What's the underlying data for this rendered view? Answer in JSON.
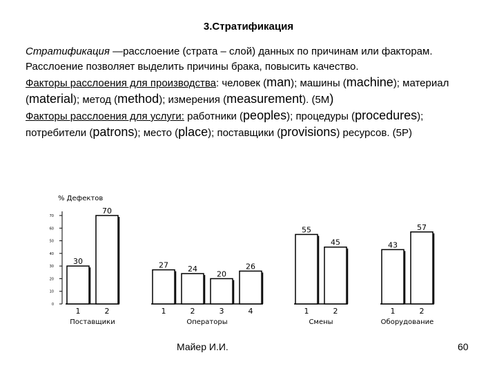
{
  "slide": {
    "title": "3.Стратификация",
    "definition": {
      "term": "Стратификация",
      "text_1": " —расслоение  (",
      "strata": "страта – слой",
      "text_2": ") данных по причинам или факторам. Расслоение позволяет выделить причины брака, повысить качество."
    },
    "production": {
      "label": "Факторы расслоения для производства",
      "t1": ": человек (",
      "man": "man",
      "t2": "); машины (",
      "machine": "machine",
      "t3": "); материал (",
      "material": "material",
      "t4": "); метод (",
      "method": "method",
      "t5": "); измерения (",
      "measurement": "measurement",
      "t6": "). (5М",
      "t7": ")"
    },
    "services": {
      "label": "Факторы расслоения для услуги:",
      "t1": " работники (",
      "peoples": "peoples",
      "t2": "); процедуры (",
      "procedures": "procedures",
      "t3": "); потребители  (",
      "patrons": "patrons",
      "t4": "); место (",
      "place": "place",
      "t5": "); поставщики (",
      "provisions": "provisions",
      "t6": ") ресурсов. (5Р)"
    },
    "footer": {
      "author": "Майер И.И.",
      "page": "60"
    }
  },
  "chart_data": {
    "type": "bar",
    "ylabel": "% Дефектов",
    "ylim": [
      0,
      70
    ],
    "yticks": [
      0,
      10,
      20,
      30,
      40,
      50,
      60,
      70
    ],
    "groups": [
      {
        "name": "Поставщики",
        "categories": [
          "1",
          "2"
        ],
        "values": [
          30,
          70
        ]
      },
      {
        "name": "Операторы",
        "categories": [
          "1",
          "2",
          "3",
          "4"
        ],
        "values": [
          27,
          24,
          20,
          26
        ]
      },
      {
        "name": "Смены",
        "categories": [
          "1",
          "2"
        ],
        "values": [
          55,
          45
        ]
      },
      {
        "name": "Оборудование",
        "categories": [
          "1",
          "2"
        ],
        "values": [
          43,
          57
        ]
      }
    ]
  }
}
